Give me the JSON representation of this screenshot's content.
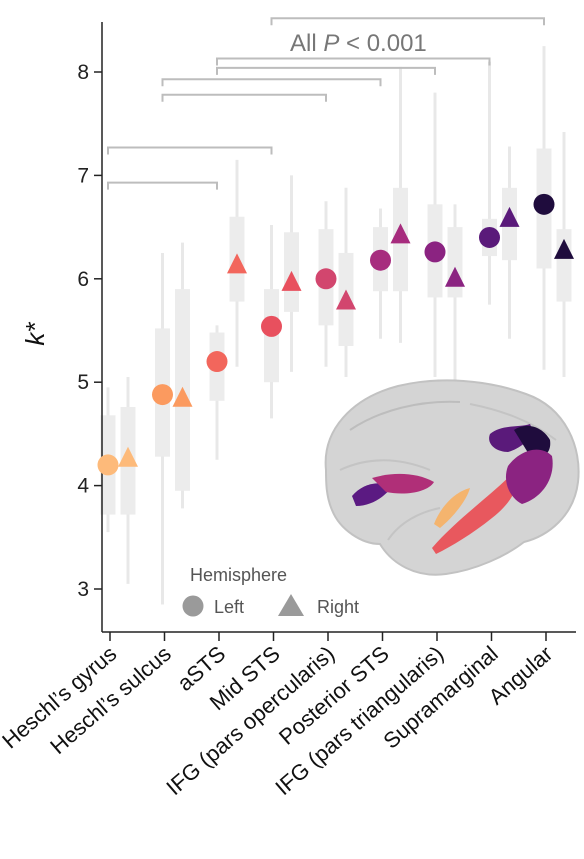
{
  "chart_data": {
    "type": "scatter",
    "ylabel": "k*",
    "ylim": [
      2.55,
      8.5
    ],
    "yticks": [
      3,
      4,
      5,
      6,
      7,
      8
    ],
    "categories": [
      "Heschl’s gyrus",
      "Heschl’s sulcus",
      "aSTS",
      "Mid STS",
      "IFG (pars opercularis)",
      "Posterior STS",
      "IFG (pars triangularis)",
      "Supramarginal",
      "Angular"
    ],
    "colors": [
      "#fdba7a",
      "#fb9a5f",
      "#f2665c",
      "#e8505e",
      "#d2466e",
      "#a72c7e",
      "#8b2381",
      "#5a1a7a",
      "#1f0c3d"
    ],
    "series": [
      {
        "name": "Left",
        "marker": "circle",
        "values": [
          4.2,
          4.88,
          5.2,
          5.54,
          6.0,
          6.18,
          6.26,
          6.4,
          6.72
        ],
        "box_q1": [
          3.72,
          4.28,
          4.82,
          5.0,
          5.55,
          5.88,
          5.82,
          6.22,
          6.1
        ],
        "box_q3": [
          4.68,
          5.52,
          5.48,
          5.9,
          6.48,
          6.5,
          6.72,
          6.58,
          7.26
        ],
        "whisker_low": [
          3.55,
          2.85,
          4.25,
          4.65,
          5.15,
          5.42,
          5.05,
          5.75,
          5.12
        ],
        "whisker_high": [
          4.95,
          6.25,
          5.55,
          6.52,
          6.75,
          6.68,
          7.8,
          8.1,
          8.25
        ]
      },
      {
        "name": "Right",
        "marker": "triangle",
        "values": [
          4.26,
          4.84,
          6.13,
          5.96,
          5.78,
          6.42,
          6.0,
          6.58,
          6.27
        ],
        "box_q1": [
          3.72,
          3.95,
          5.78,
          5.68,
          5.35,
          5.88,
          5.82,
          6.18,
          5.78
        ],
        "box_q3": [
          4.76,
          5.9,
          6.6,
          6.45,
          6.25,
          6.88,
          6.5,
          6.88,
          6.48
        ],
        "whisker_low": [
          3.05,
          3.78,
          5.15,
          5.1,
          5.05,
          5.38,
          5.0,
          5.42,
          5.05
        ],
        "whisker_high": [
          5.05,
          6.35,
          7.15,
          7.0,
          6.88,
          8.05,
          6.72,
          7.28,
          7.42
        ]
      }
    ],
    "legend": {
      "title": "Hemisphere",
      "position": "bottom-left",
      "entries": [
        "Left",
        "Right"
      ]
    },
    "significance": {
      "label_prefix": "All ",
      "label_italic": "P",
      "label_suffix": " < 0.001",
      "brackets": [
        {
          "from": 3,
          "to": 8,
          "y": 8.52
        },
        {
          "from": 2,
          "to": 7,
          "y": 8.13
        },
        {
          "from": 2,
          "to": 6,
          "y": 8.04
        },
        {
          "from": 1,
          "to": 5,
          "y": 7.93
        },
        {
          "from": 1,
          "to": 4,
          "y": 7.78
        },
        {
          "from": 0,
          "to": 3,
          "y": 7.27
        },
        {
          "from": 0,
          "to": 2,
          "y": 6.93
        }
      ]
    },
    "inset": {
      "type": "brain-surface-rendering"
    }
  }
}
